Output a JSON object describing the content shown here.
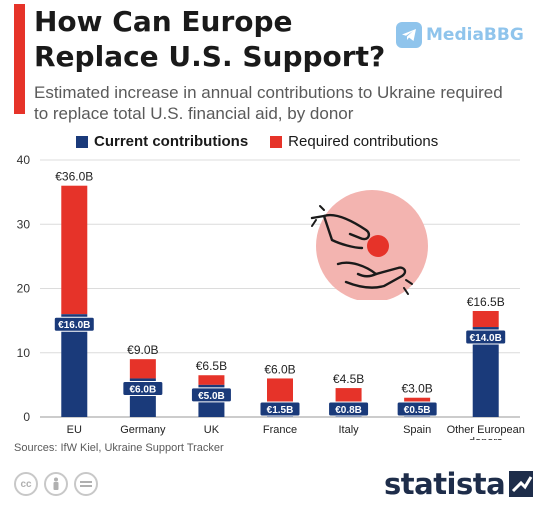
{
  "header": {
    "title": "How Can Europe Replace U.S. Support?",
    "subtitle": "Estimated increase in annual contributions to Ukraine required to replace total U.S. financial aid, by donor"
  },
  "watermark": "MediaBBG",
  "source": "Sources: IfW Kiel, Ukraine Support Tracker",
  "brand": "statista",
  "colors": {
    "current": "#1a3a7a",
    "required": "#e63329",
    "accent": "#e63329"
  },
  "chart_data": {
    "type": "bar",
    "stacked": true,
    "categories": [
      "EU",
      "Germany",
      "UK",
      "France",
      "Italy",
      "Spain",
      "Other European donors"
    ],
    "series": [
      {
        "name": "Current contributions",
        "values": [
          16.0,
          6.0,
          5.0,
          1.5,
          0.8,
          0.5,
          14.0
        ],
        "labels": [
          "€16.0B",
          "€6.0B",
          "€5.0B",
          "€1.5B",
          "€0.8B",
          "€0.5B",
          "€14.0B"
        ]
      },
      {
        "name": "Required contributions",
        "totals": [
          36.0,
          9.0,
          6.5,
          6.0,
          4.5,
          3.0,
          16.5
        ],
        "labels": [
          "€36.0B",
          "€9.0B",
          "€6.5B",
          "€6.0B",
          "€4.5B",
          "€3.0B",
          "€16.5B"
        ]
      }
    ],
    "yticks": [
      0,
      10,
      20,
      30,
      40
    ],
    "ylim": [
      0,
      40
    ],
    "grid": true,
    "legend_position": "top"
  }
}
